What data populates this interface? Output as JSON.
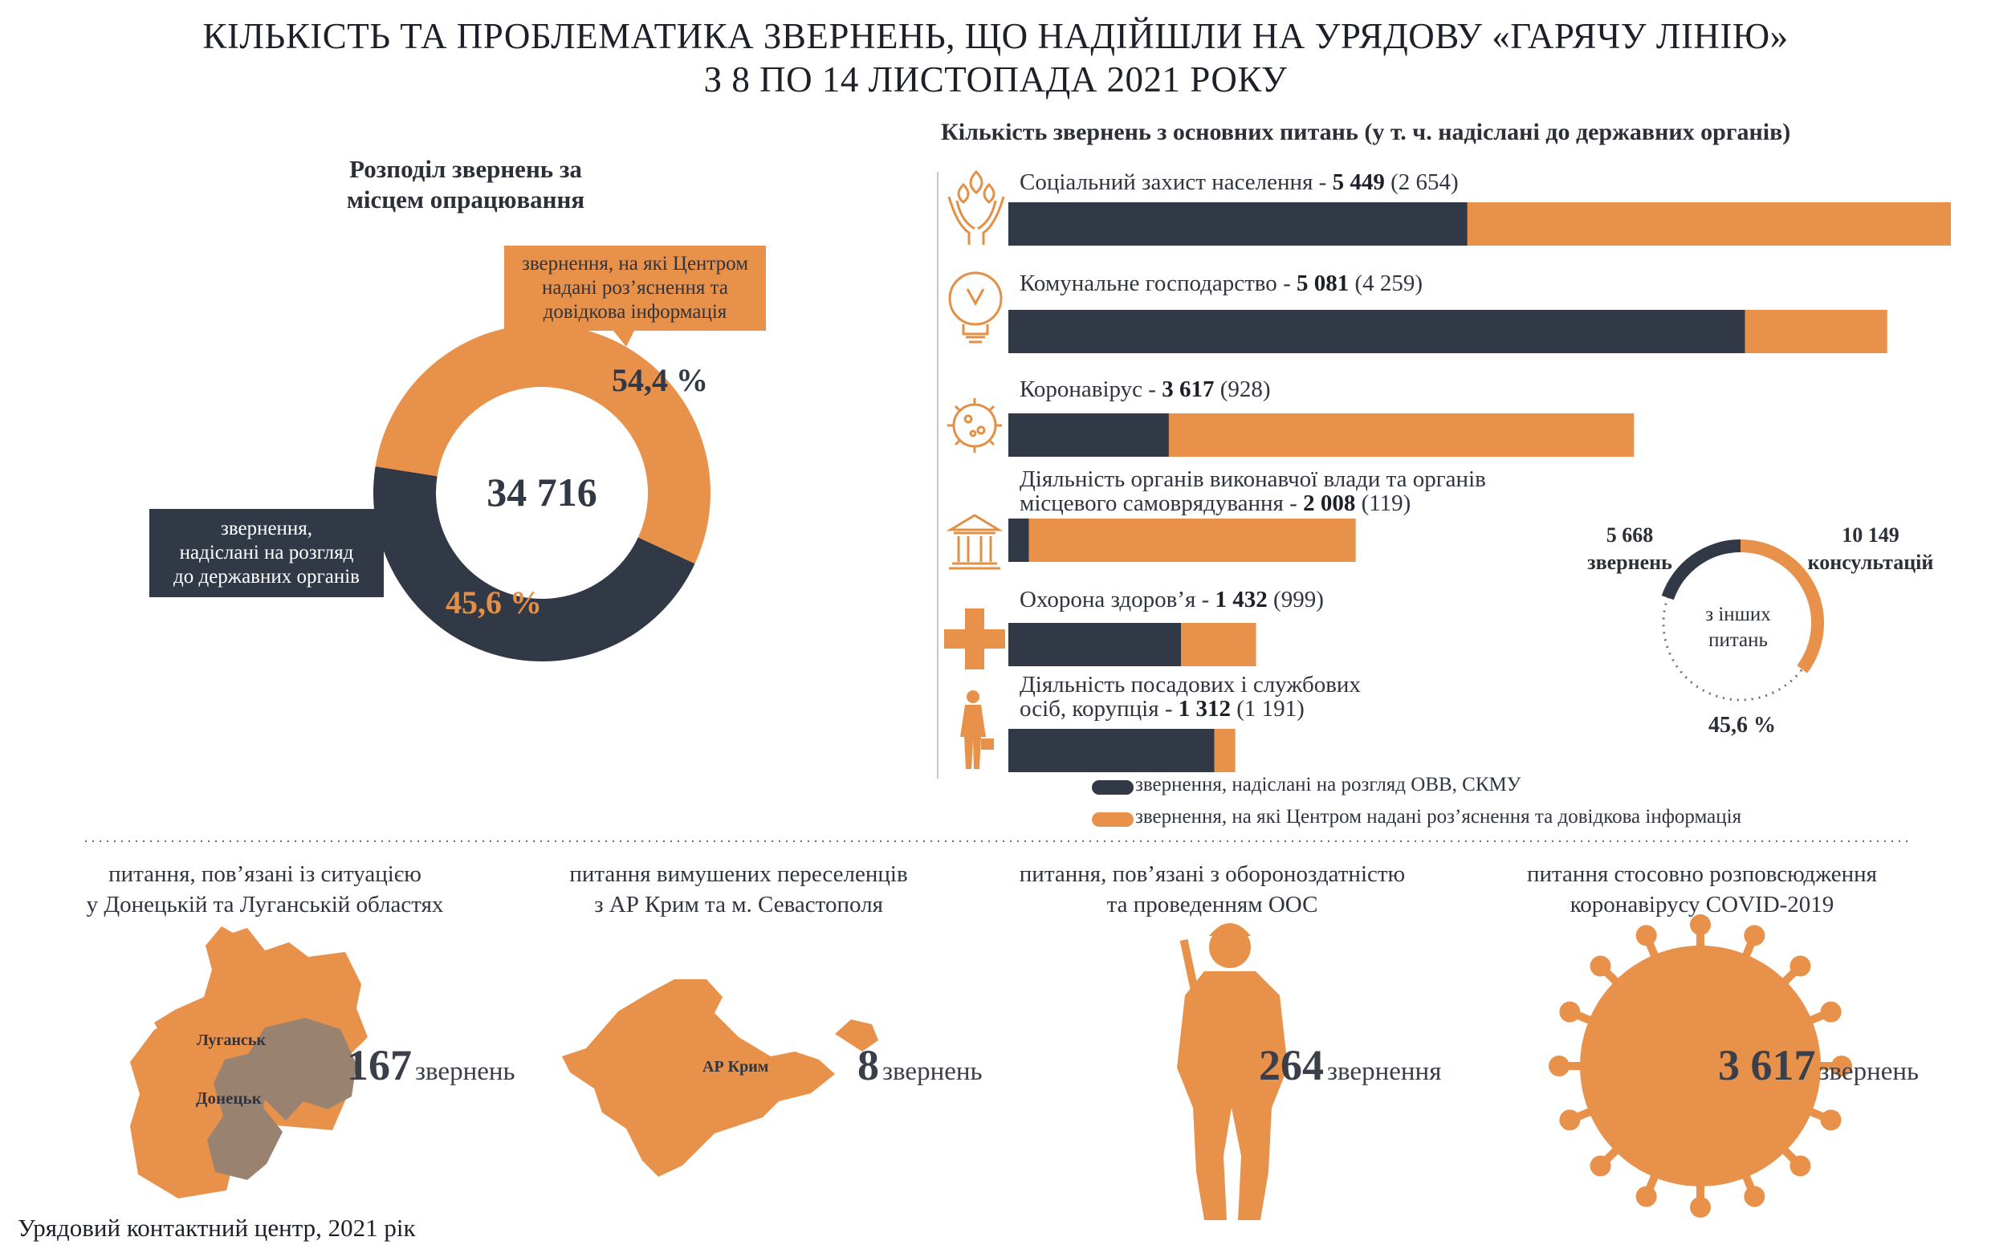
{
  "title": {
    "line1": "КІЛЬКІСТЬ ТА ПРОБЛЕМАТИКА ЗВЕРНЕНЬ, ЩО НАДІЙШЛИ НА УРЯДОВУ «ГАРЯЧУ ЛІНІЮ»",
    "line2": "З 8 ПО 14 ЛИСТОПАДА 2021 РОКУ"
  },
  "donut": {
    "heading_line1": "Розподіл звернень за",
    "heading_line2": "місцем опрацювання",
    "total": "34 716",
    "orange_pct": "54,4 %",
    "dark_pct": "45,6 %",
    "orange_callout": [
      "звернення, на які Центром",
      "надані роз’яснення та",
      "довідкова інформація"
    ],
    "dark_callout": [
      "звернення,",
      "надіслані на розгляд",
      "до державних органів"
    ]
  },
  "bars": {
    "heading": "Кількість звернень з основних питань (у т. ч. надіслані до державних органів)",
    "legend_dark": "звернення, надіслані на розгляд ОВВ, СКМУ",
    "legend_orange": "звернення, на які Центром надані роз’яснення та довідкова інформація"
  },
  "other": {
    "left_num": "5 668",
    "left_word": "звернень",
    "right_num": "10 149",
    "right_word": "консультацій",
    "center_line1": "з інших",
    "center_line2": "питань",
    "pct": "45,6 %"
  },
  "regions": [
    {
      "caption_line1": "питання, пов’язані із ситуацією",
      "caption_line2": "у Донецькій та Луганській областях",
      "number": "167",
      "word": "звернень",
      "map_label_1": "Луганськ",
      "map_label_2": "Донецьк"
    },
    {
      "caption_line1": "питання вимушених переселенців",
      "caption_line2": "з АР Крим та м. Севастополя",
      "number": "8",
      "word": "звернень",
      "map_label_1": "АР Крим"
    },
    {
      "caption_line1": "питання, пов’язані з обороноздатністю",
      "caption_line2": "та проведенням ООС",
      "number": "264",
      "word": "звернення"
    },
    {
      "caption_line1": "питання стосовно розповсюдження",
      "caption_line2": "коронавірусу COVID-2019",
      "number": "3 617",
      "word": "звернень"
    }
  ],
  "footer": "Урядовий контактний центр, 2021 рік",
  "colors": {
    "dark": "#323946",
    "orange": "#e8914b",
    "map_dark": "#9a8270"
  },
  "icons": [
    "hands-icon",
    "lightbulb-icon",
    "virus-icon",
    "government-building-icon",
    "medical-cross-icon",
    "official-person-icon",
    "soldier-silhouette",
    "ukraine-east-map",
    "crimea-map",
    "coronavirus-shape"
  ],
  "chart_data": [
    {
      "type": "pie",
      "title": "Розподіл звернень за місцем опрацювання",
      "total": 34716,
      "slices": [
        {
          "name": "звернення, на які Центром надані роз’яснення та довідкова інформація",
          "value": 54.4,
          "color": "#e8914b"
        },
        {
          "name": "звернення, надіслані на розгляд до державних органів",
          "value": 45.6,
          "color": "#323946"
        }
      ]
    },
    {
      "type": "bar",
      "orientation": "horizontal",
      "stacked": true,
      "title": "Кількість звернень з основних питань (у т. ч. надіслані до державних органів)",
      "categories": [
        "Соціальний захист населення",
        "Комунальне господарство",
        "Коронавірус",
        "Діяльність органів виконавчої влади та органів місцевого самоврядування",
        "Охорона здоров’я",
        "Діяльність посадових і службових осіб, корупція"
      ],
      "label_lines": [
        [
          "Соціальний захист населення"
        ],
        [
          "Комунальне господарство"
        ],
        [
          "Коронавірус"
        ],
        [
          "Діяльність органів виконавчої влади та органів",
          "місцевого самоврядування"
        ],
        [
          "Охорона здоров’я"
        ],
        [
          "Діяльність посадових і службових",
          "осіб, корупція"
        ]
      ],
      "totals": [
        5449,
        5081,
        3617,
        2008,
        1432,
        1312
      ],
      "total_labels": [
        "5 449",
        "5 081",
        "3 617",
        "2 008",
        "1 432",
        "1 312"
      ],
      "sent_labels": [
        "(2 654)",
        "(4 259)",
        "(928)",
        "(119)",
        "(999)",
        "(1 191)"
      ],
      "series": [
        {
          "name": "звернення, надіслані на розгляд ОВВ, СКМУ",
          "values": [
            2654,
            4259,
            928,
            119,
            999,
            1191
          ],
          "color": "#323946"
        },
        {
          "name": "звернення, на які Центром надані роз’яснення та довідкова інформація",
          "values": [
            2795,
            822,
            2689,
            1889,
            433,
            121
          ],
          "color": "#e8914b"
        }
      ],
      "legend": "bottom"
    },
    {
      "type": "pie",
      "title": "з інших питань",
      "slices": [
        {
          "name": "звернень",
          "value": 5668,
          "color": "#323946"
        },
        {
          "name": "консультацій",
          "value": 10149,
          "color": "#e8914b"
        }
      ]
    }
  ]
}
